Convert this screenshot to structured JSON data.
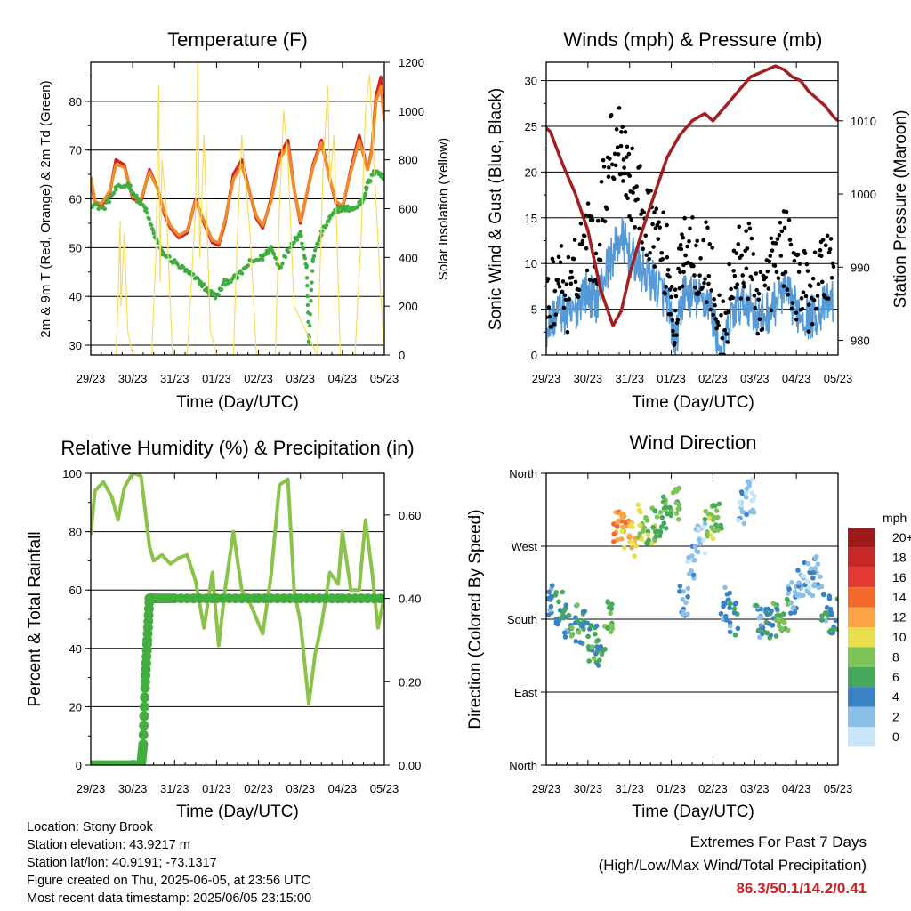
{
  "colors": {
    "temp2m": "#d62020",
    "temp9m": "#f08a2a",
    "dew": "#3fae3f",
    "solar": "#f7dc5c",
    "sonic": "#5599d6",
    "gust": "#000000",
    "pressure": "#a31f1f",
    "rh": "#8bc34a",
    "precip": "#44ad3f"
  },
  "chart_data": [
    {
      "type": "line",
      "title": "Temperature (F)",
      "xlabel": "Time (Day/UTC)",
      "ylabel": "2m & 9m T (Red, Orange) & 2m Td (Green)",
      "y2label": "Solar Insolation (Yellow)",
      "x_ticks": [
        "29/23",
        "30/23",
        "31/23",
        "01/23",
        "02/23",
        "03/23",
        "04/23",
        "05/23"
      ],
      "ylim": [
        28,
        88
      ],
      "y_ticks": [
        "30",
        "40",
        "50",
        "60",
        "70",
        "80"
      ],
      "y2lim": [
        0,
        1200
      ],
      "y2_ticks": [
        "0",
        "200",
        "400",
        "600",
        "800",
        "1000",
        "1200"
      ],
      "grid": true,
      "series": [
        {
          "key": "temp2m",
          "color": "#d62020",
          "x": [
            0,
            0.1,
            0.25,
            0.45,
            0.6,
            0.8,
            1.0,
            1.2,
            1.4,
            1.6,
            1.75,
            1.9,
            2.1,
            2.3,
            2.5,
            2.7,
            2.9,
            3.05,
            3.2,
            3.4,
            3.6,
            3.8,
            3.95,
            4.1,
            4.3,
            4.5,
            4.7,
            4.85,
            5.0,
            5.3,
            5.5,
            5.7,
            5.85,
            6.0,
            6.2,
            6.4,
            6.6,
            6.7,
            6.8,
            6.92,
            7.0
          ],
          "y": [
            64,
            59,
            58.5,
            61,
            68,
            67,
            60,
            59.5,
            66,
            62,
            57,
            54,
            52,
            53,
            60,
            55,
            51,
            50.5,
            55,
            65,
            68,
            61,
            56,
            54,
            60,
            69,
            72,
            62,
            55,
            67,
            72,
            64,
            59,
            58,
            66,
            73,
            66,
            70,
            81,
            85,
            76
          ]
        },
        {
          "key": "temp9m",
          "color": "#f08a2a",
          "x": [
            0,
            0.1,
            0.25,
            0.45,
            0.6,
            0.8,
            1.0,
            1.2,
            1.4,
            1.6,
            1.75,
            1.9,
            2.1,
            2.3,
            2.5,
            2.7,
            2.9,
            3.05,
            3.2,
            3.4,
            3.6,
            3.8,
            3.95,
            4.1,
            4.3,
            4.5,
            4.7,
            4.85,
            5.0,
            5.3,
            5.5,
            5.7,
            5.85,
            6.0,
            6.2,
            6.4,
            6.6,
            6.7,
            6.8,
            6.92,
            7.0
          ],
          "y": [
            64.5,
            59.5,
            59,
            61.5,
            67,
            66.5,
            60.5,
            60,
            65.5,
            62,
            57.5,
            54.5,
            52.5,
            53.5,
            59.5,
            55.5,
            51.5,
            51,
            55.5,
            64,
            67,
            61,
            56.5,
            54.5,
            59.5,
            68,
            71,
            62,
            55.5,
            66.5,
            71.5,
            64,
            59.5,
            58.5,
            65.5,
            72,
            66,
            69.5,
            80,
            83,
            76
          ]
        },
        {
          "key": "dew",
          "color": "#3fae3f",
          "x": [
            0,
            0.3,
            0.6,
            0.9,
            1.1,
            1.3,
            1.5,
            1.7,
            2.0,
            2.3,
            2.6,
            2.8,
            3.0,
            3.2,
            3.5,
            3.8,
            4.1,
            4.3,
            4.5,
            4.8,
            5.0,
            5.15,
            5.2,
            5.3,
            5.5,
            5.7,
            5.9,
            6.1,
            6.3,
            6.5,
            6.6,
            6.8,
            7.0
          ],
          "y": [
            59,
            58,
            62,
            63,
            60,
            58,
            53,
            49,
            47,
            45,
            43,
            41,
            40,
            43,
            44,
            47,
            48,
            50,
            46,
            51,
            53,
            46,
            30,
            48,
            53,
            56,
            58,
            58,
            58,
            60,
            63,
            66,
            64
          ]
        },
        {
          "key": "solar",
          "color": "#f7dc5c",
          "x": [
            0,
            0.6,
            0.65,
            0.7,
            0.72,
            0.8,
            0.88,
            1.0,
            1.45,
            1.55,
            1.62,
            1.65,
            1.7,
            1.8,
            1.95,
            2.3,
            2.5,
            2.55,
            2.6,
            2.7,
            2.85,
            3.0,
            3.4,
            3.5,
            3.6,
            3.7,
            3.8,
            3.95,
            4.4,
            4.5,
            4.6,
            4.7,
            4.85,
            5.4,
            5.55,
            5.65,
            5.7,
            5.8,
            5.95,
            6.3,
            6.45,
            6.55,
            6.65,
            6.75,
            6.9,
            7.0
          ],
          "y": [
            0,
            0,
            200,
            550,
            200,
            500,
            100,
            0,
            0,
            400,
            1100,
            300,
            800,
            600,
            0,
            0,
            600,
            1200,
            400,
            900,
            100,
            0,
            0,
            500,
            900,
            700,
            500,
            0,
            0,
            600,
            1000,
            800,
            200,
            0,
            800,
            1100,
            700,
            900,
            0,
            0,
            500,
            1000,
            1150,
            800,
            300,
            0
          ]
        }
      ]
    },
    {
      "type": "scatter",
      "title": "Winds (mph) & Pressure (mb)",
      "xlabel": "Time (Day/UTC)",
      "ylabel": "Sonic Wind & Gust (Blue, Black)",
      "y2label": "Station Pressure (Maroon)",
      "x_ticks": [
        "29/23",
        "30/23",
        "31/23",
        "01/23",
        "02/23",
        "03/23",
        "04/23",
        "05/23"
      ],
      "ylim": [
        0,
        32
      ],
      "y_ticks": [
        "0",
        "5",
        "10",
        "15",
        "20",
        "25",
        "30"
      ],
      "y2lim": [
        978,
        1018
      ],
      "y2_ticks": [
        "980",
        "990",
        "1000",
        "1010"
      ],
      "grid": true,
      "series": [
        {
          "key": "gust",
          "color": "#000000",
          "x": [
            0,
            0.3,
            0.6,
            0.9,
            1.2,
            1.5,
            1.8,
            2.0,
            2.3,
            2.6,
            2.9,
            3.1,
            3.3,
            3.6,
            3.9,
            4.2,
            4.5,
            4.8,
            5.1,
            5.4,
            5.7,
            6.0,
            6.3,
            6.6,
            6.9
          ],
          "y": [
            4,
            9,
            6,
            14,
            11,
            22,
            24,
            19,
            16,
            14,
            10,
            3,
            13,
            11,
            10,
            1,
            9,
            11,
            6,
            9,
            12,
            8,
            7,
            9,
            11
          ]
        },
        {
          "key": "sonic",
          "color": "#5599d6",
          "x": [
            0,
            0.3,
            0.6,
            0.9,
            1.2,
            1.5,
            1.8,
            2.0,
            2.3,
            2.6,
            2.9,
            3.1,
            3.3,
            3.6,
            3.9,
            4.2,
            4.5,
            4.8,
            5.1,
            5.4,
            5.7,
            6.0,
            6.3,
            6.6,
            6.9
          ],
          "y": [
            3,
            5,
            4,
            7,
            6,
            10,
            13,
            11,
            9,
            8,
            6,
            1,
            7,
            6,
            6,
            0,
            5,
            6,
            4,
            5,
            7,
            5,
            4,
            5,
            6
          ]
        },
        {
          "key": "pressure",
          "color": "#a31f1f",
          "x": [
            0,
            0.1,
            0.4,
            0.7,
            1.0,
            1.3,
            1.6,
            1.8,
            2.0,
            2.3,
            2.6,
            2.9,
            3.2,
            3.5,
            3.8,
            4.0,
            4.3,
            4.6,
            4.9,
            5.1,
            5.3,
            5.5,
            5.7,
            5.9,
            6.1,
            6.3,
            6.5,
            6.7,
            6.9,
            7.0
          ],
          "y": [
            1009,
            1008.5,
            1004,
            1000,
            995,
            987,
            982,
            984,
            989,
            995,
            1000,
            1005,
            1008,
            1010,
            1011,
            1010,
            1012,
            1014,
            1016,
            1016.5,
            1017,
            1017.5,
            1017,
            1016,
            1015.5,
            1014,
            1013,
            1012,
            1010.5,
            1010
          ]
        }
      ]
    },
    {
      "type": "line",
      "title": "Relative Humidity (%) & Precipitation (in)",
      "xlabel": "Time (Day/UTC)",
      "ylabel": "Percent & Total Rainfall",
      "x_ticks": [
        "29/23",
        "30/23",
        "31/23",
        "01/23",
        "02/23",
        "03/23",
        "04/23",
        "05/23"
      ],
      "ylim": [
        0,
        100
      ],
      "y_ticks": [
        "0",
        "20",
        "40",
        "60",
        "80",
        "100"
      ],
      "y2lim": [
        0,
        0.7
      ],
      "y2_ticks": [
        "0.00",
        "0.20",
        "0.40",
        "0.60"
      ],
      "grid": true,
      "series": [
        {
          "key": "rh",
          "color": "#8bc34a",
          "x": [
            0,
            0.1,
            0.3,
            0.5,
            0.65,
            0.8,
            0.95,
            1.05,
            1.2,
            1.4,
            1.5,
            1.7,
            1.9,
            2.1,
            2.3,
            2.5,
            2.7,
            2.9,
            3.05,
            3.2,
            3.4,
            3.6,
            3.75,
            3.9,
            4.1,
            4.3,
            4.5,
            4.7,
            4.85,
            5.0,
            5.2,
            5.35,
            5.5,
            5.7,
            5.9,
            6.0,
            6.2,
            6.4,
            6.55,
            6.7,
            6.85,
            7.0
          ],
          "y": [
            79,
            94,
            97,
            92,
            84,
            95,
            99,
            100,
            99,
            75,
            70,
            72,
            69,
            71,
            72,
            63,
            47,
            66,
            41,
            60,
            80,
            60,
            57,
            52,
            45,
            65,
            96,
            98,
            60,
            49,
            21,
            38,
            48,
            66,
            62,
            80,
            60,
            60,
            84,
            67,
            47,
            58
          ]
        },
        {
          "key": "precip",
          "color": "#44ad3f",
          "x": [
            0,
            0.5,
            1.0,
            1.2,
            1.25,
            1.3,
            1.35,
            1.4,
            1.5,
            2.0,
            3.0,
            4.0,
            5.0,
            6.0,
            7.0
          ],
          "y": [
            0,
            0,
            0,
            0,
            0.05,
            0.2,
            0.3,
            0.4,
            0.4,
            0.4,
            0.4,
            0.4,
            0.4,
            0.4,
            0.4
          ]
        }
      ]
    },
    {
      "type": "scatter",
      "title": "Wind Direction",
      "xlabel": "Time (Day/UTC)",
      "ylabel": "Direction (Colored By Speed)",
      "x_ticks": [
        "29/23",
        "30/23",
        "31/23",
        "01/23",
        "02/23",
        "03/23",
        "04/23",
        "05/23"
      ],
      "y_ticks": [
        "North",
        "East",
        "South",
        "West",
        "North"
      ],
      "colorbar": {
        "title": "mph",
        "labels": [
          "20+",
          "18",
          "16",
          "14",
          "12",
          "10",
          "8",
          "6",
          "4",
          "2",
          "0"
        ],
        "colors": [
          "#9e1a1a",
          "#c62828",
          "#e53935",
          "#f4692a",
          "#fba345",
          "#e8e04a",
          "#7cc257",
          "#45a85a",
          "#3b82c4",
          "#8abfe8",
          "#c9e6f8"
        ]
      },
      "series": [
        {
          "key": "direction",
          "x": [
            0.1,
            0.3,
            0.5,
            0.7,
            0.9,
            1.1,
            1.3,
            1.5,
            1.7,
            1.9,
            2.1,
            2.3,
            2.5,
            2.7,
            2.9,
            3.1,
            3.3,
            3.5,
            3.7,
            3.9,
            4.1,
            4.3,
            4.5,
            4.7,
            4.9,
            5.1,
            5.3,
            5.5,
            5.7,
            5.9,
            6.1,
            6.3,
            6.5,
            6.7,
            6.9
          ],
          "y": [
            200,
            195,
            180,
            175,
            170,
            150,
            140,
            185,
            290,
            290,
            280,
            300,
            295,
            300,
            310,
            320,
            200,
            250,
            280,
            300,
            310,
            200,
            180,
            320,
            330,
            180,
            175,
            180,
            185,
            210,
            230,
            230,
            235,
            200,
            185
          ],
          "speed": [
            4,
            5,
            4,
            6,
            5,
            6,
            5,
            7,
            13,
            12,
            11,
            9,
            8,
            7,
            7,
            6,
            3,
            2,
            1,
            8,
            7,
            3,
            4,
            2,
            1,
            4,
            5,
            6,
            7,
            3,
            2,
            2,
            3,
            4,
            5
          ]
        }
      ]
    }
  ],
  "info": {
    "location": "Location: Stony Brook",
    "elevation": "Station elevation: 43.9217 m",
    "latlon": "Station lat/lon: 40.9191; -73.1317",
    "created": "Figure created on Thu, 2025-06-05, at 23:56 UTC",
    "recent": "Most recent data timestamp: 2025/06/05 23:15:00"
  },
  "extremes": {
    "title": "Extremes For Past 7 Days",
    "subtitle": "(High/Low/Max Wind/Total Precipitation)",
    "values": "86.3/50.1/14.2/0.41"
  }
}
